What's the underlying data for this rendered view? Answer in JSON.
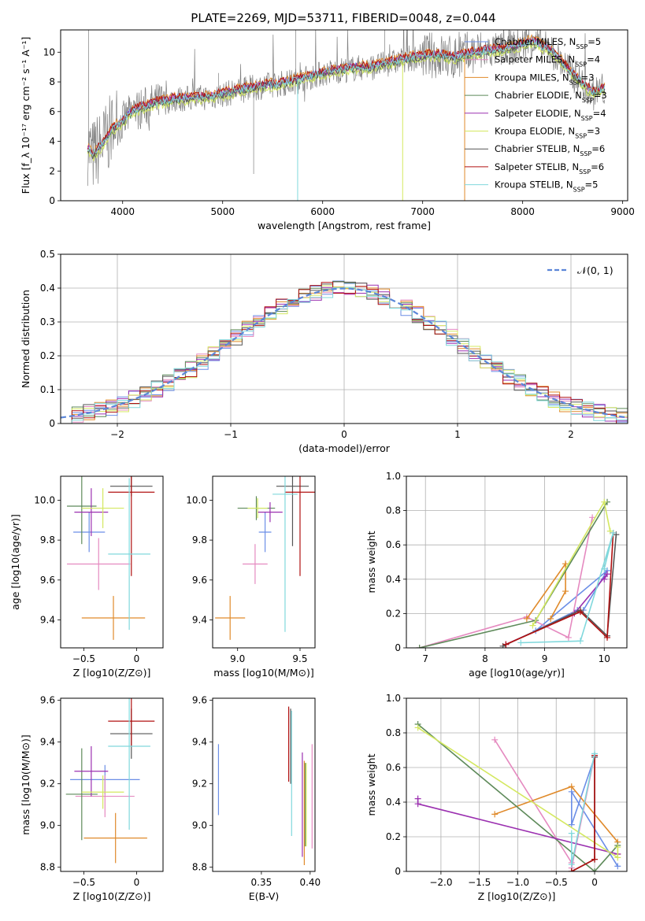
{
  "figure": {
    "title": "PLATE=2269, MJD=53711, FIBERID=0048, z=0.044"
  },
  "series_colors": {
    "Chabrier MILES": "#6b8ee6",
    "Salpeter MILES": "#e58ac0",
    "Kroupa MILES": "#e08a2a",
    "Chabrier ELODIE": "#5e8a5a",
    "Salpeter ELODIE": "#9b30b0",
    "Kroupa ELODIE": "#d4e860",
    "Chabrier STELIB": "#555555",
    "Salpeter STELIB": "#b01010",
    "Kroupa STELIB": "#80d8dc",
    "data": "#808080",
    "gaussian": "#5b86d8"
  },
  "chart_data": [
    {
      "id": "spectrum",
      "type": "line",
      "xlabel": "wavelength [Angstrom, rest frame]",
      "ylabel": "Flux [f_λ 10⁻¹⁷ erg cm⁻² s⁻¹ A⁻¹]",
      "xlim": [
        3380,
        9050
      ],
      "ylim": [
        0,
        11.5
      ],
      "xticks": [
        4000,
        5000,
        6000,
        7000,
        8000,
        9000
      ],
      "yticks": [
        0,
        2,
        4,
        6,
        8,
        10
      ],
      "legend_position": "upper-right",
      "legend": [
        {
          "name": "Chabrier MILES",
          "nssp": "5"
        },
        {
          "name": "Salpeter MILES",
          "nssp": "4"
        },
        {
          "name": "Kroupa MILES",
          "nssp": "3"
        },
        {
          "name": "Chabrier ELODIE",
          "nssp": "3"
        },
        {
          "name": "Salpeter ELODIE",
          "nssp": "4"
        },
        {
          "name": "Kroupa ELODIE",
          "nssp": "3"
        },
        {
          "name": "Chabrier STELIB",
          "nssp": "6"
        },
        {
          "name": "Salpeter STELIB",
          "nssp": "6"
        },
        {
          "name": "Kroupa STELIB",
          "nssp": "5"
        }
      ],
      "continuum": {
        "x": [
          3650,
          3700,
          3800,
          3900,
          4000,
          4100,
          4300,
          4500,
          4700,
          4900,
          5100,
          5300,
          5500,
          5700,
          5900,
          6100,
          6300,
          6500,
          6700,
          6900,
          7100,
          7300,
          7500,
          7700,
          7900,
          8100,
          8300,
          8500,
          8700,
          8800
        ],
        "y": [
          3.6,
          3.0,
          3.8,
          4.8,
          5.3,
          6.0,
          6.5,
          6.8,
          6.9,
          7.0,
          7.3,
          7.6,
          7.8,
          8.0,
          8.4,
          8.7,
          8.9,
          9.0,
          9.3,
          9.6,
          9.8,
          9.6,
          9.9,
          10.1,
          10.3,
          10.7,
          10.0,
          8.5,
          7.2,
          7.5
        ]
      }
    },
    {
      "id": "residuals",
      "type": "histogram",
      "xlabel": "(data-model)/error",
      "ylabel": "Normed distribution",
      "xlim": [
        -2.5,
        2.5
      ],
      "ylim": [
        0,
        0.5
      ],
      "xticks": [
        -2,
        -1,
        0,
        1,
        2
      ],
      "yticks": [
        0.0,
        0.1,
        0.2,
        0.3,
        0.4,
        0.5
      ],
      "grid": true,
      "bin_width": 0.1,
      "legend": [
        "𝒩(0, 1)"
      ],
      "gaussian": {
        "mean": 0,
        "sigma": 1
      }
    },
    {
      "id": "age-vs-Z",
      "type": "errorbar",
      "xlabel": "Z [log10(Z/Z⊙)]",
      "ylabel": "age [log10(age/yr)]",
      "xlim": [
        -0.72,
        0.25
      ],
      "ylim": [
        9.26,
        10.12
      ],
      "xticks": [
        -0.5,
        0.0
      ],
      "yticks": [
        9.4,
        9.6,
        9.8,
        10.0
      ],
      "points": [
        {
          "series": "Chabrier MILES",
          "x": -0.45,
          "y": 9.84,
          "xerr": 0.15,
          "yerr": 0.1
        },
        {
          "series": "Salpeter MILES",
          "x": -0.36,
          "y": 9.68,
          "xerr": 0.3,
          "yerr": 0.13
        },
        {
          "series": "Kroupa MILES",
          "x": -0.22,
          "y": 9.41,
          "xerr": 0.3,
          "yerr": 0.11
        },
        {
          "series": "Chabrier ELODIE",
          "x": -0.52,
          "y": 9.97,
          "xerr": 0.14,
          "yerr": 0.19
        },
        {
          "series": "Salpeter ELODIE",
          "x": -0.43,
          "y": 9.94,
          "xerr": 0.16,
          "yerr": 0.12
        },
        {
          "series": "Kroupa ELODIE",
          "x": -0.32,
          "y": 9.96,
          "xerr": 0.2,
          "yerr": 0.1
        },
        {
          "series": "Chabrier STELIB",
          "x": -0.05,
          "y": 10.07,
          "xerr": 0.2,
          "yerr": 0.05
        },
        {
          "series": "Salpeter STELIB",
          "x": -0.05,
          "y": 10.04,
          "xerr": 0.22,
          "yerr": 0.42
        },
        {
          "series": "Kroupa STELIB",
          "x": -0.07,
          "y": 9.73,
          "xerr": 0.2,
          "yerr": 0.38
        }
      ]
    },
    {
      "id": "age-vs-mass",
      "type": "errorbar",
      "xlabel": "mass [log10(M/M⊙)]",
      "ylabel": "",
      "xlim": [
        8.8,
        9.62
      ],
      "ylim": [
        9.26,
        10.12
      ],
      "xticks": [
        9.0,
        9.5
      ],
      "yticks": [
        9.4,
        9.6,
        9.8,
        10.0
      ],
      "points": [
        {
          "series": "Chabrier MILES",
          "x": 9.22,
          "y": 9.84,
          "xerr": 0.05,
          "yerr": 0.1
        },
        {
          "series": "Salpeter MILES",
          "x": 9.14,
          "y": 9.68,
          "xerr": 0.1,
          "yerr": 0.1
        },
        {
          "series": "Kroupa MILES",
          "x": 8.94,
          "y": 9.41,
          "xerr": 0.12,
          "yerr": 0.11
        },
        {
          "series": "Chabrier ELODIE",
          "x": 9.15,
          "y": 9.96,
          "xerr": 0.15,
          "yerr": 0.06
        },
        {
          "series": "Salpeter ELODIE",
          "x": 9.26,
          "y": 9.94,
          "xerr": 0.1,
          "yerr": 0.05
        },
        {
          "series": "Kroupa ELODIE",
          "x": 9.16,
          "y": 9.96,
          "xerr": 0.08,
          "yerr": 0.05
        },
        {
          "series": "Chabrier STELIB",
          "x": 9.44,
          "y": 10.07,
          "xerr": 0.13,
          "yerr": 0.3
        },
        {
          "series": "Salpeter STELIB",
          "x": 9.5,
          "y": 10.04,
          "xerr": 0.12,
          "yerr": 0.42
        },
        {
          "series": "Kroupa STELIB",
          "x": 9.38,
          "y": 10.03,
          "xerr": 0.1,
          "yerr": 0.69
        }
      ]
    },
    {
      "id": "mass-weight-vs-age",
      "type": "line",
      "xlabel": "age [log10(age/yr)]",
      "ylabel": "mass weight",
      "xlim": [
        6.68,
        10.38
      ],
      "ylim": [
        0,
        1.0
      ],
      "xticks": [
        7,
        8,
        9,
        10
      ],
      "yticks": [
        0.0,
        0.2,
        0.4,
        0.6,
        0.8,
        1.0
      ],
      "grid": true,
      "lines": [
        {
          "series": "Chabrier MILES",
          "x": [
            9.65,
            10.05,
            8.85,
            9.55
          ],
          "y": [
            0.22,
            0.45,
            0.1,
            0.22
          ]
        },
        {
          "series": "Salpeter MILES",
          "x": [
            6.9,
            8.7,
            9.4,
            9.8
          ],
          "y": [
            0.0,
            0.18,
            0.06,
            0.76
          ]
        },
        {
          "series": "Kroupa MILES",
          "x": [
            8.7,
            9.35,
            9.35,
            9.1
          ],
          "y": [
            0.17,
            0.49,
            0.33,
            0.17
          ]
        },
        {
          "series": "Chabrier ELODIE",
          "x": [
            6.9,
            8.85,
            10.05
          ],
          "y": [
            0.0,
            0.16,
            0.85
          ]
        },
        {
          "series": "Salpeter ELODIE",
          "x": [
            8.35,
            9.5,
            10.05,
            10.0
          ],
          "y": [
            0.02,
            0.2,
            0.43,
            0.4
          ]
        },
        {
          "series": "Kroupa ELODIE",
          "x": [
            8.8,
            10.0,
            10.1
          ],
          "y": [
            0.13,
            0.85,
            0.68
          ]
        },
        {
          "series": "Chabrier STELIB",
          "x": [
            8.3,
            9.6,
            10.05,
            10.2
          ],
          "y": [
            0.01,
            0.22,
            0.07,
            0.66
          ]
        },
        {
          "series": "Salpeter STELIB",
          "x": [
            8.35,
            9.6,
            10.05,
            10.15
          ],
          "y": [
            0.02,
            0.21,
            0.06,
            0.67
          ]
        },
        {
          "series": "Kroupa STELIB",
          "x": [
            8.6,
            9.6,
            10.15,
            10.0
          ],
          "y": [
            0.03,
            0.04,
            0.67,
            0.46
          ]
        }
      ]
    },
    {
      "id": "mass-vs-Z",
      "type": "errorbar",
      "xlabel": "Z [log10(Z/Z⊙)]",
      "ylabel": "mass [log10(M/M⊙)]",
      "xlim": [
        -0.72,
        0.25
      ],
      "ylim": [
        8.78,
        9.61
      ],
      "xticks": [
        -0.5,
        0.0
      ],
      "yticks": [
        8.8,
        9.0,
        9.2,
        9.4,
        9.6
      ],
      "points": [
        {
          "series": "Chabrier MILES",
          "x": -0.3,
          "y": 9.22,
          "xerr": 0.33,
          "yerr": 0.07
        },
        {
          "series": "Salpeter MILES",
          "x": -0.3,
          "y": 9.14,
          "xerr": 0.28,
          "yerr": 0.1
        },
        {
          "series": "Kroupa MILES",
          "x": -0.2,
          "y": 8.94,
          "xerr": 0.3,
          "yerr": 0.12
        },
        {
          "series": "Chabrier ELODIE",
          "x": -0.52,
          "y": 9.15,
          "xerr": 0.15,
          "yerr": 0.22
        },
        {
          "series": "Salpeter ELODIE",
          "x": -0.43,
          "y": 9.26,
          "xerr": 0.16,
          "yerr": 0.12
        },
        {
          "series": "Kroupa ELODIE",
          "x": -0.32,
          "y": 9.16,
          "xerr": 0.2,
          "yerr": 0.08
        },
        {
          "series": "Chabrier STELIB",
          "x": -0.05,
          "y": 9.44,
          "xerr": 0.2,
          "yerr": 0.12
        },
        {
          "series": "Salpeter STELIB",
          "x": -0.05,
          "y": 9.5,
          "xerr": 0.22,
          "yerr": 0.12
        },
        {
          "series": "Kroupa STELIB",
          "x": -0.07,
          "y": 9.38,
          "xerr": 0.2,
          "yerr": 0.4
        }
      ]
    },
    {
      "id": "mass-vs-EBV",
      "type": "errorbar",
      "xlabel": "E(B-V)",
      "ylabel": "",
      "xlim": [
        0.3,
        0.405
      ],
      "ylim": [
        8.78,
        9.61
      ],
      "xticks": [
        0.35,
        0.4
      ],
      "yticks": [
        8.8,
        9.0,
        9.2,
        9.4,
        9.6
      ],
      "points": [
        {
          "series": "Chabrier MILES",
          "x": 0.306,
          "y": 9.22,
          "xerr": 0,
          "yerr": 0.17
        },
        {
          "series": "Salpeter MILES",
          "x": 0.402,
          "y": 9.14,
          "xerr": 0,
          "yerr": 0.25
        },
        {
          "series": "Kroupa MILES",
          "x": 0.394,
          "y": 9.06,
          "xerr": 0,
          "yerr": 0.25
        },
        {
          "series": "Chabrier ELODIE",
          "x": 0.395,
          "y": 9.1,
          "xerr": 0,
          "yerr": 0.2
        },
        {
          "series": "Salpeter ELODIE",
          "x": 0.392,
          "y": 9.1,
          "xerr": 0,
          "yerr": 0.25
        },
        {
          "series": "Kroupa ELODIE",
          "x": 0.396,
          "y": 9.1,
          "xerr": 0,
          "yerr": 0.2
        },
        {
          "series": "Chabrier STELIB",
          "x": 0.38,
          "y": 9.38,
          "xerr": 0,
          "yerr": 0.18
        },
        {
          "series": "Salpeter STELIB",
          "x": 0.378,
          "y": 9.39,
          "xerr": 0,
          "yerr": 0.18
        },
        {
          "series": "Kroupa STELIB",
          "x": 0.381,
          "y": 9.25,
          "xerr": 0,
          "yerr": 0.3
        }
      ]
    },
    {
      "id": "mass-weight-vs-Z",
      "type": "line",
      "xlabel": "Z [log10(Z/Z⊙)]",
      "ylabel": "mass weight",
      "xlim": [
        -2.45,
        0.42
      ],
      "ylim": [
        0,
        1.0
      ],
      "xticks": [
        -2.0,
        -1.5,
        -1.0,
        -0.5,
        0.0
      ],
      "yticks": [
        0.0,
        0.2,
        0.4,
        0.6,
        0.8,
        1.0
      ],
      "grid": true,
      "lines": [
        {
          "series": "Chabrier MILES",
          "x": [
            0.0,
            -0.3,
            -0.3,
            0.3
          ],
          "y": [
            0.66,
            0.27,
            0.46,
            0.03
          ]
        },
        {
          "series": "Salpeter MILES",
          "x": [
            -1.3,
            -0.3,
            -0.3,
            0.0
          ],
          "y": [
            0.76,
            0.05,
            0.02,
            0.67
          ]
        },
        {
          "series": "Kroupa MILES",
          "x": [
            -1.3,
            -0.3,
            0.3,
            0.3
          ],
          "y": [
            0.33,
            0.49,
            0.17,
            0.1
          ]
        },
        {
          "series": "Chabrier ELODIE",
          "x": [
            -2.3,
            0.0,
            0.3
          ],
          "y": [
            0.85,
            0.0,
            0.15
          ]
        },
        {
          "series": "Salpeter ELODIE",
          "x": [
            -2.3,
            -2.3,
            0.3
          ],
          "y": [
            0.42,
            0.39,
            0.1
          ]
        },
        {
          "series": "Kroupa ELODIE",
          "x": [
            -2.3,
            0.3,
            0.3
          ],
          "y": [
            0.83,
            0.08,
            0.14
          ]
        },
        {
          "series": "Chabrier STELIB",
          "x": [
            0.0,
            0.0,
            -0.3
          ],
          "y": [
            0.66,
            0.07,
            0.0
          ]
        },
        {
          "series": "Salpeter STELIB",
          "x": [
            0.0,
            0.0,
            -0.3
          ],
          "y": [
            0.67,
            0.07,
            0.0
          ]
        },
        {
          "series": "Kroupa STELIB",
          "x": [
            -0.3,
            -0.3,
            0.0
          ],
          "y": [
            0.22,
            0.04,
            0.68
          ]
        }
      ]
    }
  ]
}
